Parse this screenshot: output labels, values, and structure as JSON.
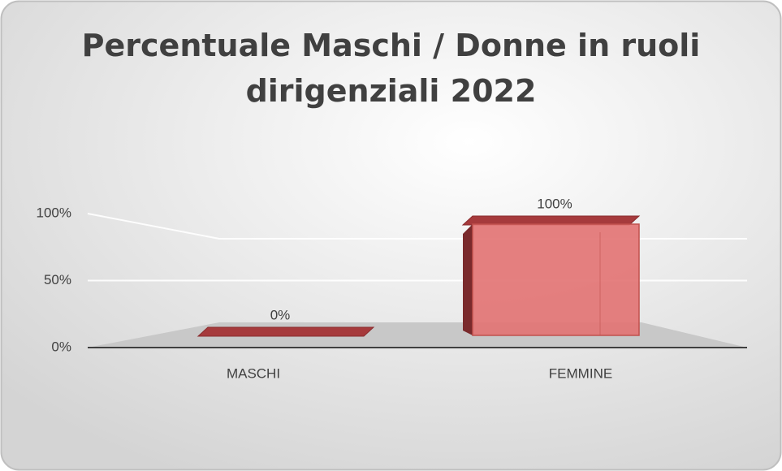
{
  "chart_data": {
    "type": "bar3d",
    "title": "Percentuale Maschi / Donne in ruoli dirigenziali 2022",
    "categories": [
      "MASCHI",
      "FEMMINE"
    ],
    "values": [
      0,
      100
    ],
    "value_labels": [
      "0%",
      "100%"
    ],
    "color": "#e27272",
    "ylim": [
      0,
      100
    ],
    "yticks": [
      {
        "value": 0,
        "label": "0%"
      },
      {
        "value": 50,
        "label": "50%"
      },
      {
        "value": 100,
        "label": "100%"
      }
    ],
    "grid": true
  }
}
